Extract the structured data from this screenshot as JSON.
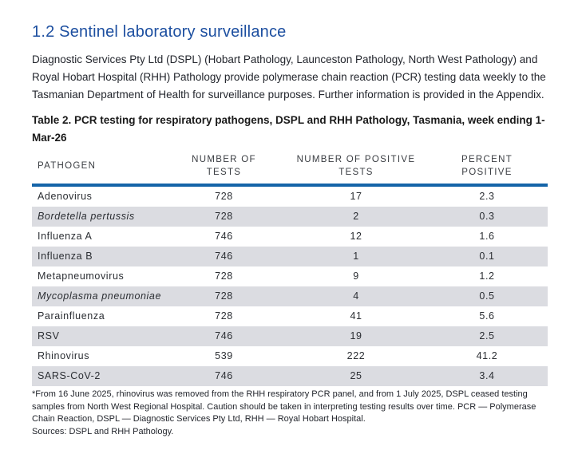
{
  "page": {
    "heading": "1.2 Sentinel laboratory surveillance",
    "intro": "Diagnostic Services Pty Ltd (DSPL) (Hobart Pathology, Launceston Pathology, North West Pathology) and Royal Hobart Hospital (RHH) Pathology provide polymerase chain reaction (PCR) testing data weekly to the Tasmanian Department of Health for surveillance purposes. Further information is provided in the Appendix."
  },
  "table": {
    "caption": "Table 2. PCR testing for respiratory pathogens, DSPL and RHH Pathology, Tasmania, week ending 1-Mar-26",
    "columns": [
      "PATHOGEN",
      "NUMBER OF\nTESTS",
      "NUMBER OF POSITIVE\nTESTS",
      "PERCENT\nPOSITIVE"
    ],
    "rows": [
      {
        "pathogen": "Adenovirus",
        "italic": false,
        "tests": "728",
        "positive": "17",
        "percent": "2.3"
      },
      {
        "pathogen": "Bordetella pertussis",
        "italic": true,
        "tests": "728",
        "positive": "2",
        "percent": "0.3"
      },
      {
        "pathogen": "Influenza A",
        "italic": false,
        "tests": "746",
        "positive": "12",
        "percent": "1.6"
      },
      {
        "pathogen": "Influenza B",
        "italic": false,
        "tests": "746",
        "positive": "1",
        "percent": "0.1"
      },
      {
        "pathogen": "Metapneumovirus",
        "italic": false,
        "tests": "728",
        "positive": "9",
        "percent": "1.2"
      },
      {
        "pathogen": "Mycoplasma pneumoniae",
        "italic": true,
        "tests": "728",
        "positive": "4",
        "percent": "0.5"
      },
      {
        "pathogen": "Parainfluenza",
        "italic": false,
        "tests": "728",
        "positive": "41",
        "percent": "5.6"
      },
      {
        "pathogen": "RSV",
        "italic": false,
        "tests": "746",
        "positive": "19",
        "percent": "2.5"
      },
      {
        "pathogen": "Rhinovirus",
        "italic": false,
        "tests": "539",
        "positive": "222",
        "percent": "41.2"
      },
      {
        "pathogen": "SARS-CoV-2",
        "italic": false,
        "tests": "746",
        "positive": "25",
        "percent": "3.4"
      }
    ],
    "footnote": "*From 16 June 2025, rhinovirus was removed from the RHH respiratory PCR panel, and from 1 July 2025, DSPL ceased testing samples from North West Regional Hospital. Caution should be taken in interpreting testing results over time. PCR — Polymerase Chain Reaction, DSPL — Diagnostic Services Pty Ltd, RHH — Royal Hobart Hospital.",
    "sources": "Sources: DSPL and RHH Pathology."
  },
  "colors": {
    "heading_blue": "#1d4fa0",
    "header_rule_blue": "#1464a8",
    "row_alt_gray": "#dbdce1",
    "body_text": "#23262d"
  }
}
